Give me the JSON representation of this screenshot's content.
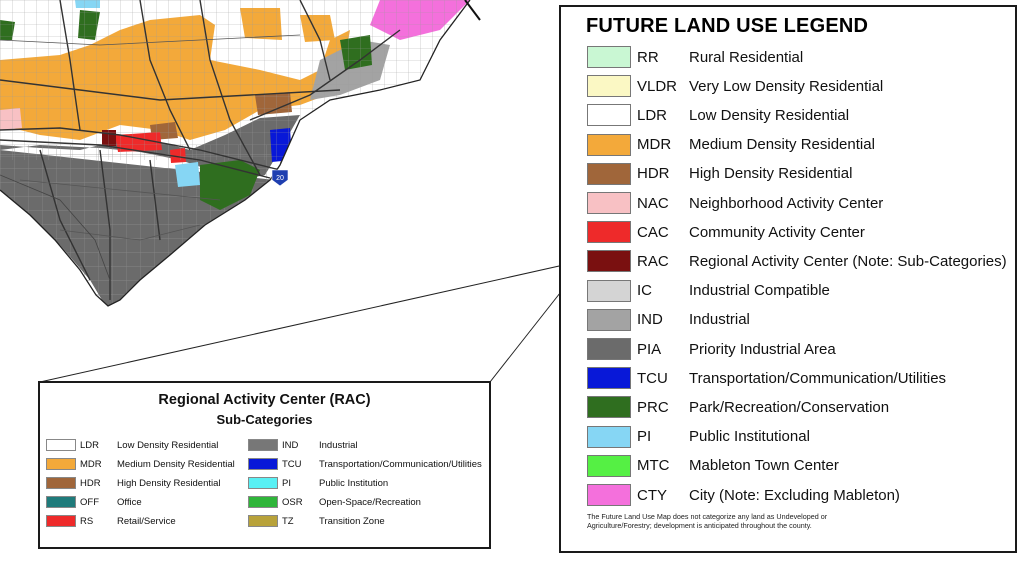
{
  "legend": {
    "title": "FUTURE LAND USE LEGEND",
    "items": [
      {
        "code": "RR",
        "label": "Rural Residential",
        "color": "#c9f7d3"
      },
      {
        "code": "VLDR",
        "label": "Very Low Density Residential",
        "color": "#fbf8c4"
      },
      {
        "code": "LDR",
        "label": "Low Density Residential",
        "color": "#ffffff"
      },
      {
        "code": "MDR",
        "label": "Medium Density Residential",
        "color": "#f3a93a"
      },
      {
        "code": "HDR",
        "label": "High Density Residential",
        "color": "#a0663a"
      },
      {
        "code": "NAC",
        "label": "Neighborhood Activity Center",
        "color": "#f8c1c4"
      },
      {
        "code": "CAC",
        "label": "Community Activity Center",
        "color": "#ee2a2a"
      },
      {
        "code": "RAC",
        "label": "Regional Activity Center (Note: Sub-Categories)",
        "color": "#7a1010"
      },
      {
        "code": "IC",
        "label": "Industrial Compatible",
        "color": "#d4d4d4"
      },
      {
        "code": "IND",
        "label": "Industrial",
        "color": "#a3a3a3"
      },
      {
        "code": "PIA",
        "label": "Priority Industrial Area",
        "color": "#6b6b6b"
      },
      {
        "code": "TCU",
        "label": "Transportation/Communication/Utilities",
        "color": "#0818d8"
      },
      {
        "code": "PRC",
        "label": "Park/Recreation/Conservation",
        "color": "#2f6e1f"
      },
      {
        "code": "PI",
        "label": "Public Institutional",
        "color": "#86d6f4"
      },
      {
        "code": "MTC",
        "label": "Mableton Town Center",
        "color": "#55f044"
      },
      {
        "code": "CTY",
        "label": "City (Note: Excluding Mableton)",
        "color": "#f470dc"
      }
    ],
    "note": "The Future Land Use Map does not categorize any land as Undeveloped or Agriculture/Forestry; development is anticipated throughout the county."
  },
  "rac": {
    "title": "Regional Activity Center  (RAC)",
    "subtitle": "Sub-Categories",
    "left_items": [
      {
        "code": "LDR",
        "label": "Low Density Residential",
        "color": "#ffffff"
      },
      {
        "code": "MDR",
        "label": "Medium Density Residential",
        "color": "#f3a93a"
      },
      {
        "code": "HDR",
        "label": "High Density Residential",
        "color": "#a0663a"
      },
      {
        "code": "OFF",
        "label": "Office",
        "color": "#1f7b7b"
      },
      {
        "code": "RS",
        "label": "Retail/Service",
        "color": "#ee2a2a"
      }
    ],
    "right_items": [
      {
        "code": "IND",
        "label": "Industrial",
        "color": "#777777"
      },
      {
        "code": "TCU",
        "label": "Transportation/Communication/Utilities",
        "color": "#0818d8"
      },
      {
        "code": "PI",
        "label": "Public Institution",
        "color": "#58f0f4"
      },
      {
        "code": "OSR",
        "label": "Open-Space/Recreation",
        "color": "#2fb53a"
      },
      {
        "code": "TZ",
        "label": "Transition Zone",
        "color": "#b8a23a"
      }
    ]
  },
  "map": {
    "highway_shield": "20",
    "colors": {
      "ldr": "#ffffff",
      "mdr": "#f3a93a",
      "pia": "#6b6b6b",
      "ind": "#a3a3a3",
      "cac": "#ee2a2a",
      "rac": "#7a1010",
      "tcu": "#0818d8",
      "prc": "#2f6e1f",
      "pi": "#86d6f4",
      "cty": "#f470dc",
      "nac": "#f8c1c4",
      "hdr": "#a0663a",
      "grid": "#8a8a8a",
      "road": "#333333"
    }
  }
}
